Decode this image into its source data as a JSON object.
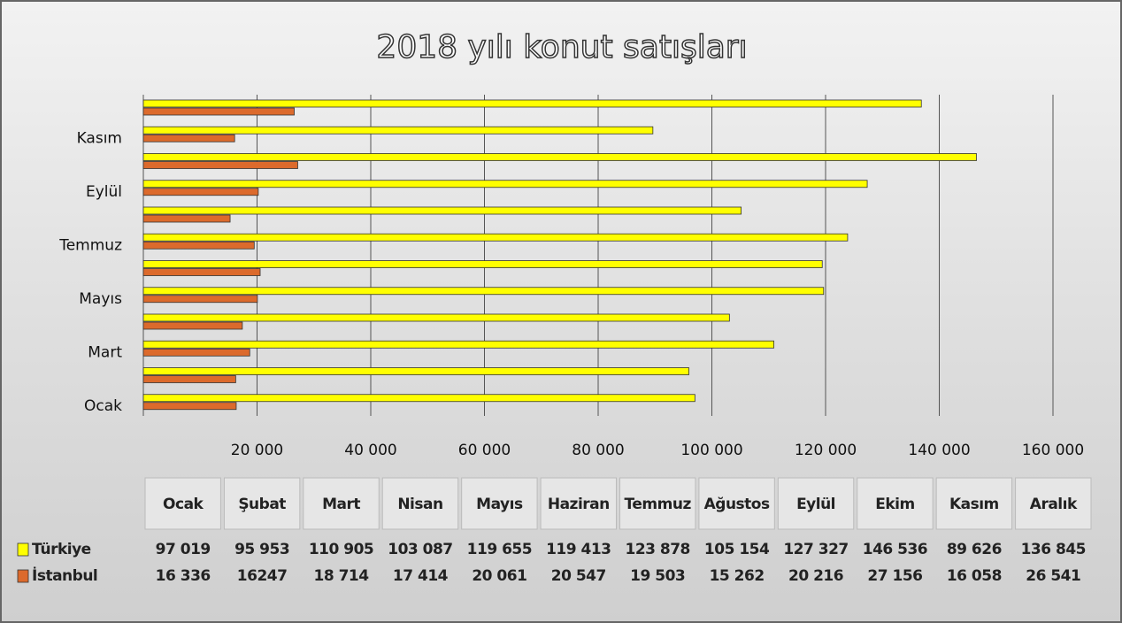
{
  "chart_data": {
    "type": "barh",
    "title": "2018 yılı konut satışları",
    "categories": [
      "Ocak",
      "Şubat",
      "Mart",
      "Nisan",
      "Mayıs",
      "Haziran",
      "Temmuz",
      "Ağustos",
      "Eylül",
      "Ekim",
      "Kasım",
      "Aralık"
    ],
    "series": [
      {
        "name": "Türkiye",
        "color": "#ffff00",
        "values": [
          97019,
          95953,
          110905,
          103087,
          119655,
          119413,
          123878,
          105154,
          127327,
          146536,
          89626,
          136845
        ],
        "value_labels": [
          "97 019",
          "95 953",
          "110 905",
          "103 087",
          "119 655",
          "119 413",
          "123 878",
          "105 154",
          "127 327",
          "146 536",
          "89 626",
          "136 845"
        ]
      },
      {
        "name": "İstanbul",
        "color": "#dc6a2c",
        "values": [
          16336,
          16247,
          18714,
          17414,
          20061,
          20547,
          19503,
          15262,
          20216,
          27156,
          16058,
          26541
        ],
        "value_labels": [
          "16 336",
          "16247",
          "18 714",
          "17 414",
          "20 061",
          "20 547",
          "19 503",
          "15 262",
          "20 216",
          "27 156",
          "16 058",
          "26 541"
        ]
      }
    ],
    "xlim": [
      0,
      160000
    ],
    "xticks": [
      {
        "value": 20000,
        "label": "20 000"
      },
      {
        "value": 40000,
        "label": "40 000"
      },
      {
        "value": 60000,
        "label": "60 000"
      },
      {
        "value": 80000,
        "label": "80 000"
      },
      {
        "value": 100000,
        "label": "100 000"
      },
      {
        "value": 120000,
        "label": "120 000"
      },
      {
        "value": 140000,
        "label": "140 000"
      },
      {
        "value": 160000,
        "label": "160 000"
      }
    ],
    "grid": true
  }
}
